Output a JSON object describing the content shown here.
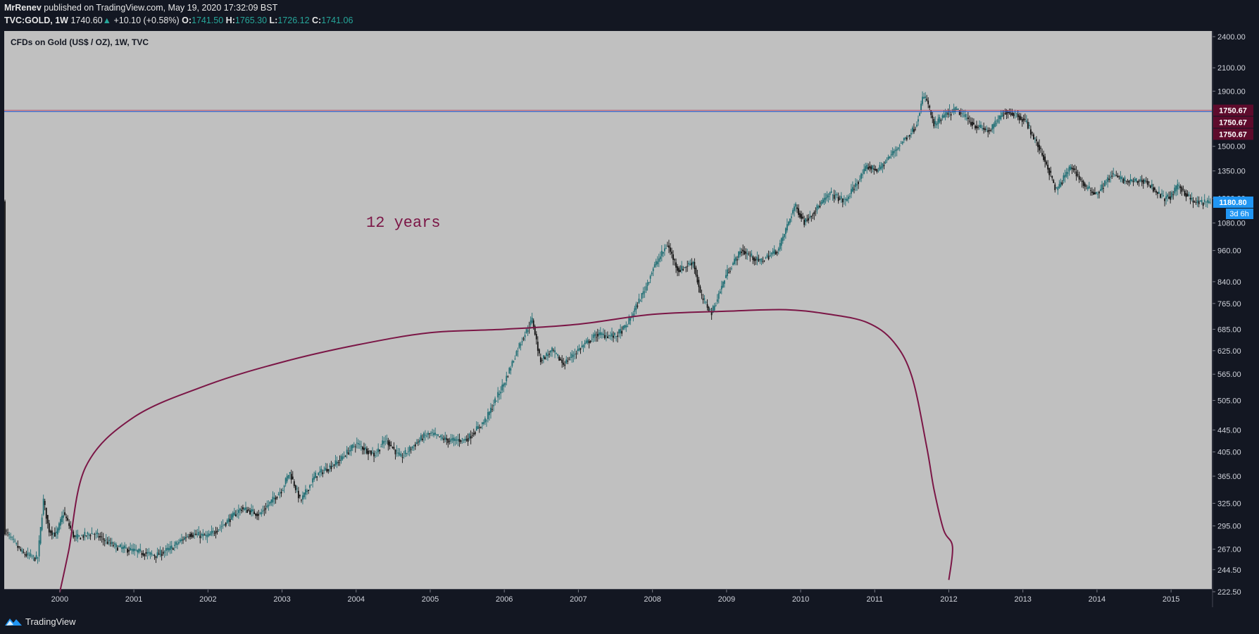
{
  "header": {
    "author": "MrRenev",
    "published": "published on TradingView.com, May 19, 2020 17:32:09 BST",
    "symbol": "TVC:GOLD, 1W",
    "last": "1740.60",
    "change_arrow": "▲",
    "change": "+10.10 (+0.58%)",
    "o_label": "O:",
    "o": "1741.50",
    "h_label": "H:",
    "h": "1765.30",
    "l_label": "L:",
    "l": "1726.12",
    "c_label": "C:",
    "c": "1741.06"
  },
  "legend_title": "CFDs on Gold (US$ / OZ), 1W, TVC",
  "footer": {
    "brand": "TradingView"
  },
  "colors": {
    "plot_bg": "#c0c0c0",
    "candle_up": "#1f6e74",
    "candle_down": "#111111",
    "annotation": "#7b1646",
    "hline_red": "#b05070",
    "hline_blue": "#2855c8",
    "price_tag_bg": "#5e0b2c",
    "current_tag_bg": "#2196f3"
  },
  "chart_data": {
    "type": "candlestick",
    "y_scale": "log",
    "y_ticks": [
      "222.50",
      "244.50",
      "267.00",
      "295.00",
      "325.00",
      "365.00",
      "405.00",
      "445.00",
      "505.00",
      "565.00",
      "625.00",
      "685.00",
      "765.00",
      "840.00",
      "960.00",
      "1080.00",
      "1200.00",
      "1350.00",
      "1500.00",
      "1900.00",
      "2100.00",
      "2400.00"
    ],
    "x_ticks": [
      "2000",
      "2001",
      "2002",
      "2003",
      "2004",
      "2005",
      "2006",
      "2007",
      "2008",
      "2009",
      "2010",
      "2011",
      "2012",
      "2013",
      "2014",
      "2015"
    ],
    "x_range": [
      1999.25,
      2015.55
    ],
    "price_path": [
      [
        1999.25,
        290
      ],
      [
        1999.5,
        262
      ],
      [
        1999.7,
        256
      ],
      [
        1999.78,
        330
      ],
      [
        1999.85,
        290
      ],
      [
        1999.95,
        284
      ],
      [
        2000.05,
        312
      ],
      [
        2000.2,
        280
      ],
      [
        2000.45,
        286
      ],
      [
        2000.75,
        270
      ],
      [
        2001.0,
        265
      ],
      [
        2001.3,
        260
      ],
      [
        2001.5,
        268
      ],
      [
        2001.75,
        285
      ],
      [
        2002.0,
        282
      ],
      [
        2002.25,
        300
      ],
      [
        2002.45,
        318
      ],
      [
        2002.7,
        310
      ],
      [
        2003.0,
        345
      ],
      [
        2003.1,
        372
      ],
      [
        2003.25,
        328
      ],
      [
        2003.45,
        366
      ],
      [
        2003.75,
        388
      ],
      [
        2004.0,
        420
      ],
      [
        2004.25,
        400
      ],
      [
        2004.4,
        428
      ],
      [
        2004.6,
        395
      ],
      [
        2004.9,
        432
      ],
      [
        2005.0,
        438
      ],
      [
        2005.25,
        425
      ],
      [
        2005.5,
        428
      ],
      [
        2005.75,
        465
      ],
      [
        2006.0,
        545
      ],
      [
        2006.2,
        640
      ],
      [
        2006.38,
        715
      ],
      [
        2006.48,
        600
      ],
      [
        2006.65,
        625
      ],
      [
        2006.8,
        590
      ],
      [
        2007.0,
        628
      ],
      [
        2007.25,
        670
      ],
      [
        2007.5,
        665
      ],
      [
        2007.65,
        695
      ],
      [
        2007.9,
        815
      ],
      [
        2008.0,
        885
      ],
      [
        2008.2,
        985
      ],
      [
        2008.35,
        880
      ],
      [
        2008.55,
        915
      ],
      [
        2008.65,
        790
      ],
      [
        2008.8,
        735
      ],
      [
        2009.0,
        870
      ],
      [
        2009.2,
        960
      ],
      [
        2009.45,
        915
      ],
      [
        2009.7,
        965
      ],
      [
        2009.92,
        1165
      ],
      [
        2010.05,
        1085
      ],
      [
        2010.4,
        1225
      ],
      [
        2010.6,
        1185
      ],
      [
        2010.9,
        1375
      ],
      [
        2011.05,
        1355
      ],
      [
        2011.35,
        1520
      ],
      [
        2011.55,
        1630
      ],
      [
        2011.65,
        1850
      ],
      [
        2011.7,
        1835
      ],
      [
        2011.8,
        1640
      ],
      [
        2011.95,
        1715
      ],
      [
        2012.1,
        1755
      ],
      [
        2012.35,
        1640
      ],
      [
        2012.55,
        1600
      ],
      [
        2012.75,
        1740
      ],
      [
        2012.9,
        1725
      ],
      [
        2013.05,
        1660
      ],
      [
        2013.3,
        1410
      ],
      [
        2013.45,
        1240
      ],
      [
        2013.65,
        1380
      ],
      [
        2013.85,
        1255
      ],
      [
        2014.0,
        1225
      ],
      [
        2014.2,
        1330
      ],
      [
        2014.4,
        1290
      ],
      [
        2014.65,
        1295
      ],
      [
        2014.9,
        1200
      ],
      [
        2015.0,
        1210
      ],
      [
        2015.1,
        1270
      ],
      [
        2015.3,
        1180
      ],
      [
        2015.55,
        1180
      ]
    ],
    "horizontal_line": {
      "price_labels": [
        "1750.67",
        "1750.67",
        "1750.67"
      ]
    },
    "current_price": {
      "label": "1180.80",
      "countdown": "3d 6h"
    },
    "annotation_text": "12 years",
    "annotation_curve": [
      [
        2000.0,
        222
      ],
      [
        2000.12,
        265
      ],
      [
        2000.35,
        380
      ],
      [
        2001.0,
        470
      ],
      [
        2002.0,
        540
      ],
      [
        2003.0,
        595
      ],
      [
        2004.0,
        640
      ],
      [
        2005.0,
        675
      ],
      [
        2006.0,
        685
      ],
      [
        2007.0,
        700
      ],
      [
        2008.0,
        730
      ],
      [
        2009.0,
        740
      ],
      [
        2009.8,
        745
      ],
      [
        2010.4,
        730
      ],
      [
        2010.9,
        705
      ],
      [
        2011.25,
        650
      ],
      [
        2011.5,
        560
      ],
      [
        2011.7,
        415
      ],
      [
        2011.8,
        345
      ],
      [
        2011.93,
        290
      ],
      [
        2012.05,
        270
      ],
      [
        2012.0,
        234
      ]
    ]
  }
}
